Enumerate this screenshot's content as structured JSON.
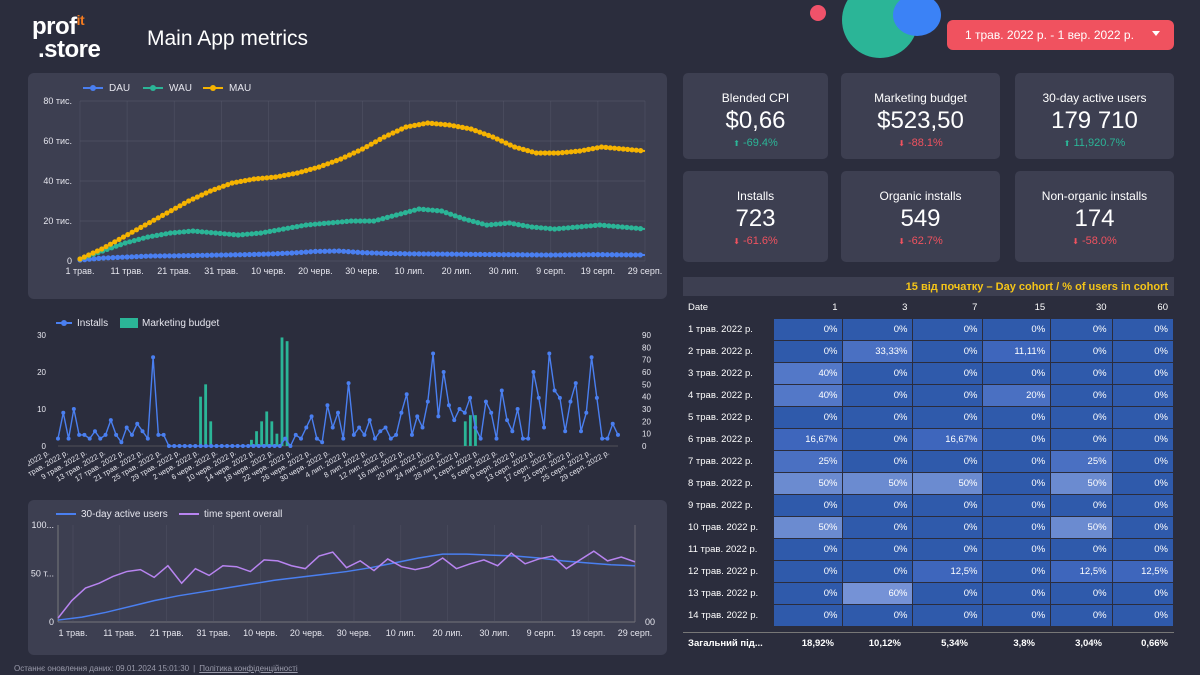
{
  "logo": {
    "line1": "prof",
    "it": "it",
    "line2": ".store"
  },
  "title": "Main App metrics",
  "date_range": "1 трав. 2022 р. - 1 вер. 2022 р.",
  "kpis": [
    {
      "label": "Blended CPI",
      "value": "$0,66",
      "delta": "-69.4%",
      "dir": "up"
    },
    {
      "label": "Marketing budget",
      "value": "$523,50",
      "delta": "-88.1%",
      "dir": "down"
    },
    {
      "label": "30-day active users",
      "value": "179 710",
      "delta": "11,920.7%",
      "dir": "up"
    },
    {
      "label": "Installs",
      "value": "723",
      "delta": "-61.6%",
      "dir": "down"
    },
    {
      "label": "Organic installs",
      "value": "549",
      "delta": "-62.7%",
      "dir": "down"
    },
    {
      "label": "Non-organic installs",
      "value": "174",
      "delta": "-58.0%",
      "dir": "down"
    }
  ],
  "chart_data": [
    {
      "type": "line",
      "legend": [
        "DAU",
        "WAU",
        "MAU"
      ],
      "x_ticks": [
        "1 трав.",
        "11 трав.",
        "21 трав.",
        "31 трав.",
        "10 черв.",
        "20 черв.",
        "30 черв.",
        "10 лип.",
        "20 лип.",
        "30 лип.",
        "9 серп.",
        "19 серп.",
        "29 серп."
      ],
      "y_ticks": [
        "80 тис.",
        "60 тис.",
        "40 тис.",
        "20 тис.",
        "0"
      ],
      "ylim": [
        0,
        80000
      ],
      "series": [
        {
          "name": "DAU",
          "color": "#4a7ff0",
          "values": [
            500,
            1500,
            2000,
            2500,
            2600,
            2800,
            3000,
            3200,
            3500,
            4000,
            4800,
            5000,
            4200,
            3800,
            3600,
            3500,
            3400,
            3300,
            3200,
            3100,
            3000,
            3100,
            3200,
            3100,
            3000
          ]
        },
        {
          "name": "WAU",
          "color": "#2bb597",
          "values": [
            1000,
            5000,
            9000,
            12000,
            14000,
            15000,
            14000,
            13000,
            14000,
            16000,
            18000,
            19000,
            20000,
            20000,
            23000,
            26000,
            25000,
            21000,
            18000,
            19000,
            17000,
            16000,
            17000,
            18000,
            17000,
            16000
          ]
        },
        {
          "name": "MAU",
          "color": "#f5b301",
          "values": [
            1000,
            6000,
            12000,
            18000,
            24000,
            30000,
            35000,
            39000,
            41000,
            42000,
            44000,
            47000,
            51000,
            56000,
            62000,
            67000,
            69000,
            68000,
            66000,
            62000,
            57000,
            54000,
            54000,
            55000,
            57000,
            56000,
            55000
          ]
        }
      ]
    },
    {
      "type": "bar",
      "legend": [
        "Installs",
        "Marketing budget"
      ],
      "x_ticks": [
        "1 трав. 2022 р.",
        "5 трав. 2022 р.",
        "9 трав. 2022 р.",
        "13 трав. 2022 р.",
        "17 трав. 2022 р.",
        "21 трав. 2022 р.",
        "25 трав. 2022 р.",
        "29 трав. 2022 р.",
        "2 черв. 2022 р.",
        "6 черв. 2022 р.",
        "10 черв. 2022 р.",
        "14 черв. 2022 р.",
        "18 черв. 2022 р.",
        "22 черв. 2022 р.",
        "26 черв. 2022 р.",
        "30 черв. 2022 р.",
        "4 лип. 2022 р.",
        "8 лип. 2022 р.",
        "12 лип. 2022 р.",
        "16 лип. 2022 р.",
        "20 лип. 2022 р.",
        "24 лип. 2022 р.",
        "28 лип. 2022 р.",
        "1 серп. 2022 р.",
        "5 серп. 2022 р.",
        "9 серп. 2022 р.",
        "13 серп. 2022 р.",
        "17 серп. 2022 р.",
        "21 серп. 2022 р.",
        "25 серп. 2022 р.",
        "29 серп. 2022 р."
      ],
      "y_left": [
        "30",
        "20",
        "10",
        "0"
      ],
      "y_right": [
        "90",
        "80",
        "70",
        "60",
        "50",
        "40",
        "30",
        "20",
        "10",
        "0"
      ],
      "installs": [
        2,
        9,
        2,
        10,
        3,
        3,
        2,
        4,
        2,
        3,
        7,
        3,
        1,
        5,
        3,
        6,
        4,
        2,
        24,
        3,
        3,
        0,
        0,
        0,
        0,
        0,
        0,
        0,
        0,
        0,
        0,
        0,
        0,
        0,
        0,
        0,
        0,
        0,
        0,
        0,
        0,
        0,
        0,
        2,
        0,
        3,
        2,
        5,
        8,
        2,
        1,
        11,
        5,
        9,
        2,
        17,
        3,
        5,
        3,
        7,
        2,
        4,
        5,
        2,
        3,
        9,
        14,
        3,
        8,
        5,
        12,
        25,
        8,
        20,
        11,
        7,
        10,
        9,
        13,
        5,
        2,
        12,
        9,
        2,
        15,
        7,
        4,
        10,
        2,
        2,
        20,
        13,
        5,
        25,
        15,
        13,
        4,
        12,
        17,
        4,
        9,
        24,
        13,
        2,
        2,
        6,
        3
      ],
      "budget": [
        0,
        0,
        0,
        0,
        0,
        0,
        0,
        0,
        0,
        0,
        0,
        0,
        0,
        0,
        0,
        0,
        0,
        0,
        0,
        0,
        0,
        0,
        0,
        0,
        0,
        0,
        0,
        0,
        40,
        50,
        20,
        0,
        0,
        0,
        0,
        0,
        0,
        0,
        5,
        12,
        20,
        28,
        20,
        10,
        88,
        85,
        0,
        0,
        0,
        0,
        0,
        0,
        0,
        0,
        0,
        0,
        0,
        0,
        0,
        0,
        0,
        0,
        0,
        0,
        0,
        0,
        0,
        0,
        0,
        0,
        0,
        0,
        0,
        0,
        0,
        0,
        0,
        0,
        0,
        0,
        20,
        25,
        25,
        0,
        0,
        0,
        0,
        0,
        0,
        0,
        0,
        0,
        0,
        0,
        0,
        0,
        0,
        0,
        0,
        0,
        0,
        0,
        0,
        0,
        0,
        0,
        0,
        0,
        0,
        0,
        0
      ]
    },
    {
      "type": "line",
      "legend": [
        "30-day active users",
        "time spent overall"
      ],
      "x_ticks": [
        "1 трав.",
        "11 трав.",
        "21 трав.",
        "31 трав.",
        "10 черв.",
        "20 черв.",
        "30 черв.",
        "10 лип.",
        "20 лип.",
        "30 лип.",
        "9 серп.",
        "19 серп.",
        "29 серп."
      ],
      "y_left": [
        "100...",
        "50 т...",
        "0"
      ],
      "y_right": "00",
      "series": [
        {
          "name": "30-day active users",
          "color": "#4a7ff0",
          "values": [
            2,
            5,
            10,
            16,
            22,
            27,
            31,
            35,
            39,
            43,
            46,
            49,
            52,
            56,
            61,
            66,
            70,
            70,
            69,
            68,
            66,
            63,
            61,
            59,
            58
          ]
        },
        {
          "name": "time spent overall",
          "color": "#b884f0",
          "values": [
            4,
            22,
            35,
            40,
            47,
            52,
            54,
            46,
            58,
            40,
            55,
            48,
            58,
            57,
            52,
            64,
            63,
            58,
            55,
            68,
            72,
            56,
            63,
            53,
            65,
            57,
            54,
            57,
            66,
            55,
            60,
            64,
            58,
            71,
            60,
            65,
            68,
            55,
            64,
            73,
            63,
            67,
            62
          ]
        }
      ]
    }
  ],
  "cohort": {
    "title": "15 від початку – Day cohort / % of users in cohort",
    "columns": [
      "Date",
      "1",
      "3",
      "7",
      "15",
      "30",
      "60"
    ],
    "rows": [
      {
        "date": "1 трав. 2022 р.",
        "cells": [
          "0%",
          "0%",
          "0%",
          "0%",
          "0%",
          "0%"
        ]
      },
      {
        "date": "2 трав. 2022 р.",
        "cells": [
          "0%",
          "33,33%",
          "0%",
          "11,11%",
          "0%",
          "0%"
        ]
      },
      {
        "date": "3 трав. 2022 р.",
        "cells": [
          "40%",
          "0%",
          "0%",
          "0%",
          "0%",
          "0%"
        ]
      },
      {
        "date": "4 трав. 2022 р.",
        "cells": [
          "40%",
          "0%",
          "0%",
          "20%",
          "0%",
          "0%"
        ]
      },
      {
        "date": "5 трав. 2022 р.",
        "cells": [
          "0%",
          "0%",
          "0%",
          "0%",
          "0%",
          "0%"
        ]
      },
      {
        "date": "6 трав. 2022 р.",
        "cells": [
          "16,67%",
          "0%",
          "16,67%",
          "0%",
          "0%",
          "0%"
        ]
      },
      {
        "date": "7 трав. 2022 р.",
        "cells": [
          "25%",
          "0%",
          "0%",
          "0%",
          "25%",
          "0%"
        ]
      },
      {
        "date": "8 трав. 2022 р.",
        "cells": [
          "50%",
          "50%",
          "50%",
          "0%",
          "50%",
          "0%"
        ]
      },
      {
        "date": "9 трав. 2022 р.",
        "cells": [
          "0%",
          "0%",
          "0%",
          "0%",
          "0%",
          "0%"
        ]
      },
      {
        "date": "10 трав. 2022 р.",
        "cells": [
          "50%",
          "0%",
          "0%",
          "0%",
          "50%",
          "0%"
        ]
      },
      {
        "date": "11 трав. 2022 р.",
        "cells": [
          "0%",
          "0%",
          "0%",
          "0%",
          "0%",
          "0%"
        ]
      },
      {
        "date": "12 трав. 2022 р.",
        "cells": [
          "0%",
          "0%",
          "12,5%",
          "0%",
          "12,5%",
          "12,5%"
        ]
      },
      {
        "date": "13 трав. 2022 р.",
        "cells": [
          "0%",
          "60%",
          "0%",
          "0%",
          "0%",
          "0%"
        ]
      },
      {
        "date": "14 трав. 2022 р.",
        "cells": [
          "0%",
          "0%",
          "0%",
          "0%",
          "0%",
          "0%"
        ]
      }
    ],
    "total_label": "Загальний під...",
    "totals": [
      "18,92%",
      "10,12%",
      "5,34%",
      "3,8%",
      "3,04%",
      "0,66%"
    ]
  },
  "footer": {
    "updated": "Останнє оновлення даних: 09.01.2024 15:01:30",
    "privacy": "Політика конфіденційності"
  }
}
